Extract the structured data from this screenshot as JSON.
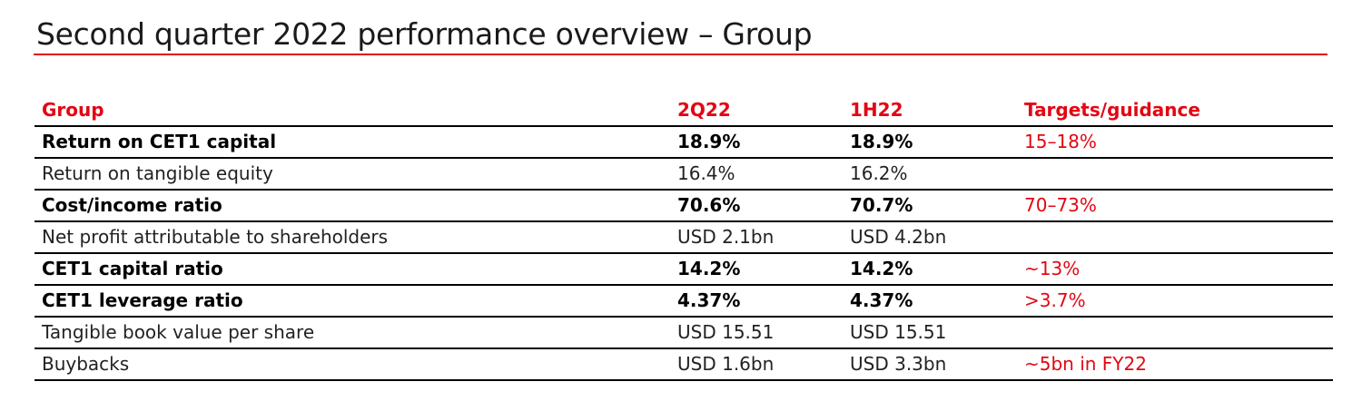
{
  "page": {
    "title": "Second quarter 2022 performance overview – Group",
    "accent_color": "#e30613"
  },
  "table": {
    "headers": [
      "Group",
      "2Q22",
      "1H22",
      "Targets/guidance"
    ],
    "rows": [
      {
        "label": "Return on CET1 capital",
        "q2": "18.9%",
        "h1": "18.9%",
        "target": "15–18%",
        "bold": true
      },
      {
        "label": "Return on tangible equity",
        "q2": "16.4%",
        "h1": "16.2%",
        "target": "",
        "bold": false
      },
      {
        "label": "Cost/income ratio",
        "q2": "70.6%",
        "h1": "70.7%",
        "target": "70–73%",
        "bold": true
      },
      {
        "label": "Net profit attributable to shareholders",
        "q2": "USD 2.1bn",
        "h1": "USD 4.2bn",
        "target": "",
        "bold": false
      },
      {
        "label": "CET1 capital ratio",
        "q2": "14.2%",
        "h1": "14.2%",
        "target": "~13%",
        "bold": true
      },
      {
        "label": "CET1 leverage ratio",
        "q2": "4.37%",
        "h1": "4.37%",
        "target": ">3.7%",
        "bold": true
      },
      {
        "label": "Tangible book value per share",
        "q2": "USD 15.51",
        "h1": "USD 15.51",
        "target": "",
        "bold": false
      },
      {
        "label": "Buybacks",
        "q2": "USD 1.6bn",
        "h1": "USD 3.3bn",
        "target": "~5bn in FY22",
        "bold": false
      }
    ]
  }
}
